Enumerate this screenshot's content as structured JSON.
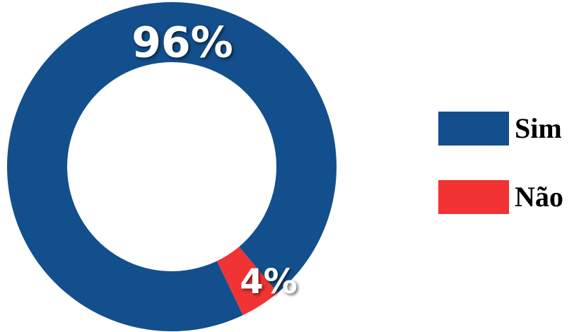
{
  "chart_data": {
    "type": "donut",
    "categories": [
      "Sim",
      "Não"
    ],
    "values": [
      96,
      4
    ],
    "value_labels": [
      "96%",
      "4%"
    ],
    "colors": [
      "#134f8c",
      "#f23333"
    ],
    "legend": "right"
  }
}
